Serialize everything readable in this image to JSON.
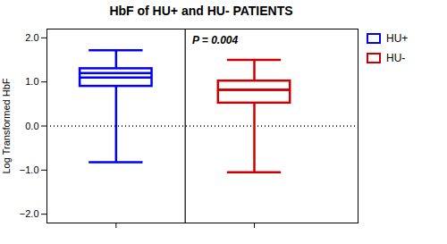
{
  "chart_data": {
    "type": "box",
    "title": "HbF of HU+ and HU- PATIENTS",
    "ylabel": "Log Transformed HbF",
    "ylim": [
      -2.2,
      2.2
    ],
    "yticks": [
      -2,
      -1,
      0,
      1,
      2
    ],
    "tick_labels": "y",
    "grid": false,
    "legend": "right",
    "annotation": "P = 0.004",
    "reference_line": 0,
    "series": [
      {
        "name": "HU+",
        "color": "#0000FF",
        "q1": 0.9,
        "medians": [
          1.1,
          1.2
        ],
        "q3": 1.3,
        "whisker_low": -0.82,
        "whisker_high": 1.72
      },
      {
        "name": "HU-",
        "color": "#CC0000",
        "q1": 0.52,
        "medians": [
          0.82,
          0.82
        ],
        "q3": 1.02,
        "whisker_low": -1.05,
        "whisker_high": 1.5
      }
    ]
  }
}
